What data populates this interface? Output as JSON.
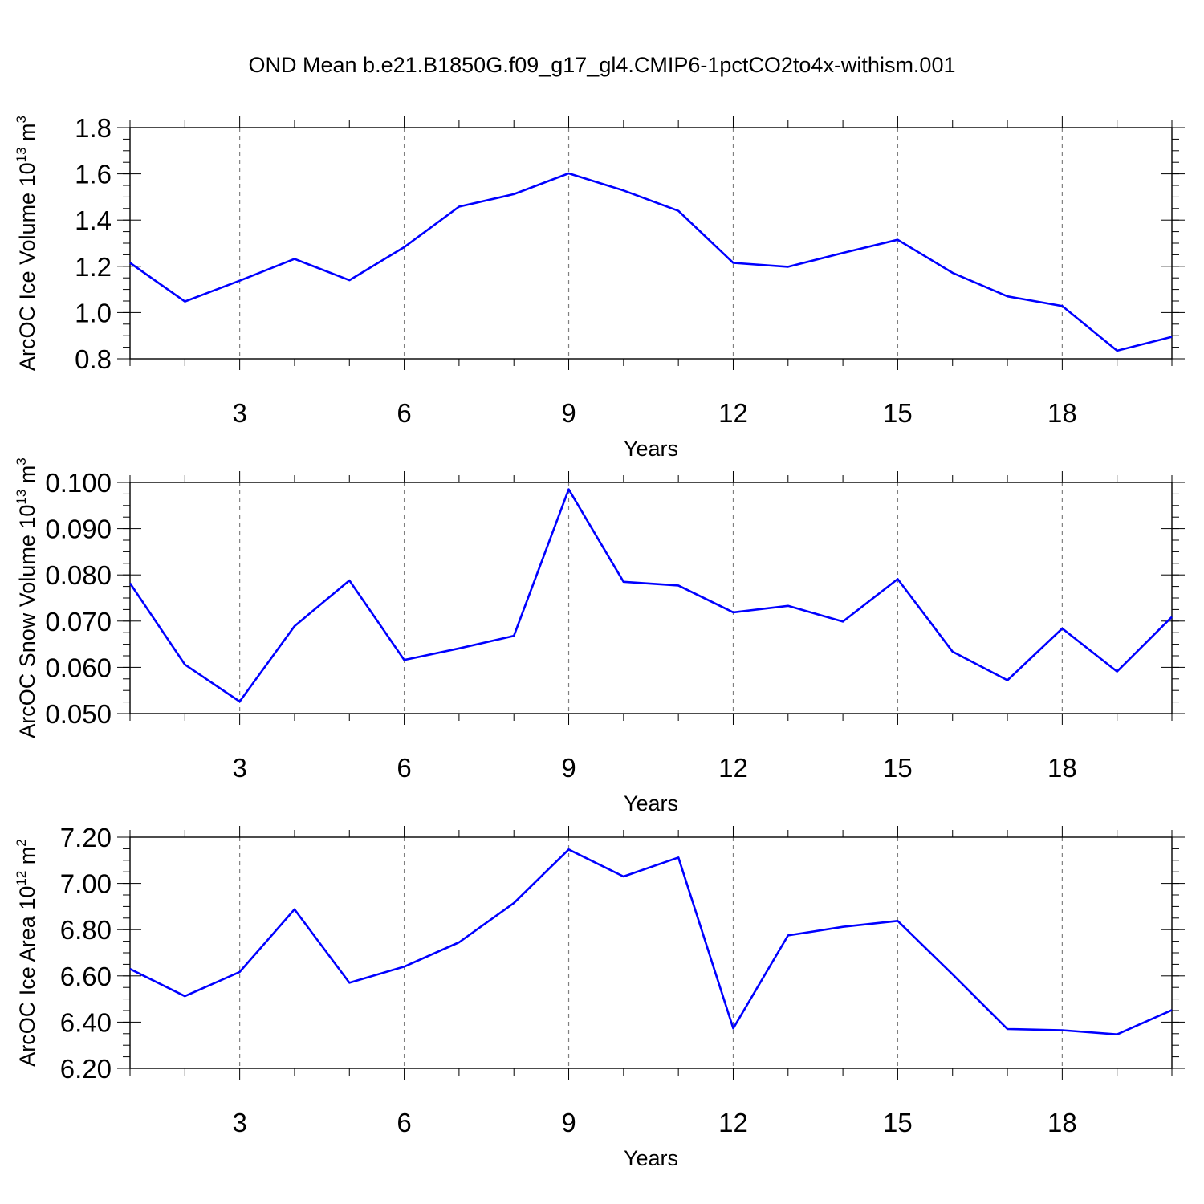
{
  "figure": {
    "title": "OND Mean b.e21.B1850G.f09_g17_gl4.CMIP6-1pctCO2to4x-withism.001"
  },
  "colors": {
    "line": "#0000ff",
    "axis": "#000000",
    "grid": "#808080"
  },
  "chart_data": [
    {
      "type": "line",
      "title": "",
      "xlabel": "Years",
      "ylabel_main": "ArcOC Ice Volume 10",
      "ylabel_exp": "13",
      "ylabel_unit": " m",
      "ylabel_unit_exp": "3",
      "xlim": [
        1,
        20
      ],
      "ylim": [
        0.8,
        1.8
      ],
      "x_ticks": [
        3,
        6,
        9,
        12,
        15,
        18
      ],
      "x_tick_labels": [
        "3",
        "6",
        "9",
        "12",
        "15",
        "18"
      ],
      "y_ticks": [
        0.8,
        1.0,
        1.2,
        1.4,
        1.6,
        1.8
      ],
      "y_tick_labels": [
        "0.8",
        "1.0",
        "1.2",
        "1.4",
        "1.6",
        "1.8"
      ],
      "y_minor_step": 0.05,
      "grid": "vertical dashed at major x ticks",
      "x": [
        1,
        2,
        3,
        4,
        5,
        6,
        7,
        8,
        9,
        10,
        11,
        12,
        13,
        14,
        15,
        16,
        17,
        18,
        19,
        20
      ],
      "series": [
        {
          "name": "ArcOC Ice Volume",
          "values": [
            1.215,
            1.048,
            1.138,
            1.232,
            1.14,
            1.283,
            1.458,
            1.512,
            1.602,
            1.528,
            1.44,
            1.215,
            1.198,
            1.258,
            1.315,
            1.172,
            1.07,
            1.028,
            0.835,
            0.895
          ]
        }
      ]
    },
    {
      "type": "line",
      "title": "",
      "xlabel": "Years",
      "ylabel_main": "ArcOC Snow Volume 10",
      "ylabel_exp": "13",
      "ylabel_unit": " m",
      "ylabel_unit_exp": "3",
      "xlim": [
        1,
        20
      ],
      "ylim": [
        0.05,
        0.1
      ],
      "x_ticks": [
        3,
        6,
        9,
        12,
        15,
        18
      ],
      "x_tick_labels": [
        "3",
        "6",
        "9",
        "12",
        "15",
        "18"
      ],
      "y_ticks": [
        0.05,
        0.06,
        0.07,
        0.08,
        0.09,
        0.1
      ],
      "y_tick_labels": [
        "0.050",
        "0.060",
        "0.070",
        "0.080",
        "0.090",
        "0.100"
      ],
      "y_minor_step": 0.0025,
      "grid": "vertical dashed at major x ticks",
      "x": [
        1,
        2,
        3,
        4,
        5,
        6,
        7,
        8,
        9,
        10,
        11,
        12,
        13,
        14,
        15,
        16,
        17,
        18,
        19,
        20
      ],
      "series": [
        {
          "name": "ArcOC Snow Volume",
          "values": [
            0.0782,
            0.0606,
            0.0526,
            0.0689,
            0.0788,
            0.0616,
            0.0641,
            0.0668,
            0.0985,
            0.0785,
            0.0777,
            0.0719,
            0.0733,
            0.0699,
            0.0791,
            0.0634,
            0.0572,
            0.0684,
            0.0591,
            0.0709
          ]
        }
      ]
    },
    {
      "type": "line",
      "title": "",
      "xlabel": "Years",
      "ylabel_main": "ArcOC Ice Area 10",
      "ylabel_exp": "12",
      "ylabel_unit": " m",
      "ylabel_unit_exp": "2",
      "xlim": [
        1,
        20
      ],
      "ylim": [
        6.2,
        7.2
      ],
      "x_ticks": [
        3,
        6,
        9,
        12,
        15,
        18
      ],
      "x_tick_labels": [
        "3",
        "6",
        "9",
        "12",
        "15",
        "18"
      ],
      "y_ticks": [
        6.2,
        6.4,
        6.6,
        6.8,
        7.0,
        7.2
      ],
      "y_tick_labels": [
        "6.20",
        "6.40",
        "6.60",
        "6.80",
        "7.00",
        "7.20"
      ],
      "y_minor_step": 0.05,
      "grid": "vertical dashed at major x ticks",
      "x": [
        1,
        2,
        3,
        4,
        5,
        6,
        7,
        8,
        9,
        10,
        11,
        12,
        13,
        14,
        15,
        16,
        17,
        18,
        19,
        20
      ],
      "series": [
        {
          "name": "ArcOC Ice Area",
          "values": [
            6.63,
            6.512,
            6.617,
            6.888,
            6.57,
            6.64,
            6.745,
            6.915,
            7.147,
            7.03,
            7.112,
            6.373,
            6.775,
            6.812,
            6.838,
            6.607,
            6.37,
            6.365,
            6.347,
            6.452
          ]
        }
      ]
    }
  ]
}
